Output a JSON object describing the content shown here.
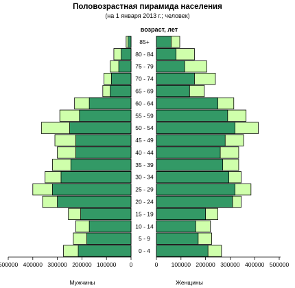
{
  "chart_data": {
    "type": "bar",
    "orientation": "horizontal",
    "title": "Половозрастная пирамида населения",
    "subtitle": "(на 1 января 2013 г.; человек)",
    "ylabel": "возраст, лет",
    "xlim": [
      0,
      500000
    ],
    "x_ticks_left": [
      "500000",
      "400000",
      "300000",
      "200000",
      "100000",
      "0"
    ],
    "x_ticks_right": [
      "0",
      "100000",
      "200000",
      "300000",
      "400000",
      "500000"
    ],
    "left_label": "Мужчины",
    "right_label": "Женщины",
    "categories": [
      "0 - 4",
      "5 - 9",
      "10 - 14",
      "15 - 19",
      "20 - 24",
      "25 - 29",
      "30 - 34",
      "35 - 39",
      "40 - 44",
      "45 - 49",
      "50 - 54",
      "55 - 59",
      "60 - 64",
      "65 - 69",
      "70 - 74",
      "75 - 79",
      "80 - 84",
      "85+"
    ],
    "series": [
      {
        "side": "left",
        "layer": "light",
        "values": [
          275000,
          235000,
          225000,
          255000,
          360000,
          400000,
          350000,
          320000,
          300000,
          310000,
          365000,
          290000,
          230000,
          115000,
          110000,
          85000,
          70000,
          20000
        ]
      },
      {
        "side": "left",
        "layer": "dark",
        "values": [
          215000,
          180000,
          170000,
          205000,
          300000,
          320000,
          285000,
          245000,
          225000,
          225000,
          250000,
          210000,
          170000,
          85000,
          80000,
          50000,
          40000,
          12000
        ]
      },
      {
        "side": "right",
        "layer": "light",
        "values": [
          265000,
          225000,
          220000,
          250000,
          345000,
          385000,
          345000,
          335000,
          335000,
          355000,
          415000,
          365000,
          315000,
          195000,
          240000,
          205000,
          155000,
          95000
        ]
      },
      {
        "side": "right",
        "layer": "dark",
        "values": [
          210000,
          170000,
          160000,
          200000,
          310000,
          320000,
          295000,
          270000,
          260000,
          280000,
          320000,
          290000,
          250000,
          135000,
          155000,
          115000,
          80000,
          60000
        ]
      }
    ],
    "colors": {
      "light": "#cfffab",
      "dark": "#339966",
      "outline": "#000000"
    },
    "grid": false,
    "legend": "none"
  }
}
